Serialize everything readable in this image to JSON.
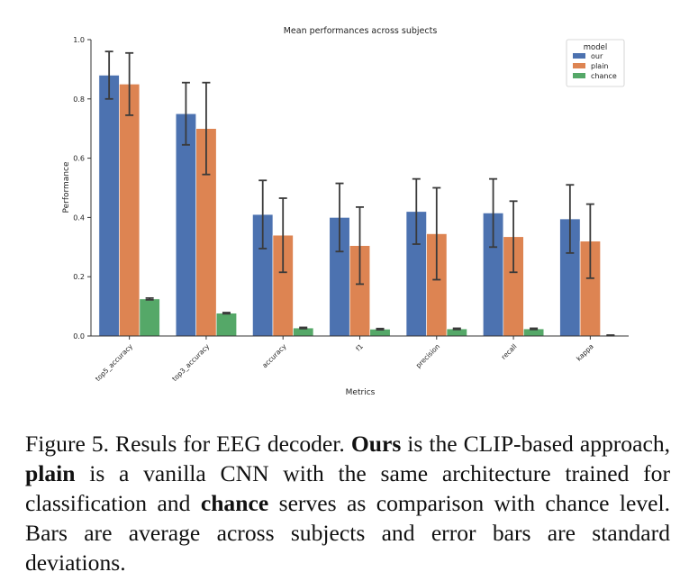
{
  "chart_data": {
    "type": "bar",
    "title": "Mean performances across subjects",
    "xlabel": "Metrics",
    "ylabel": "Performance",
    "ylim": [
      0,
      1.0
    ],
    "yticks": [
      "0.0",
      "0.2",
      "0.4",
      "0.6",
      "0.8",
      "1.0"
    ],
    "categories": [
      "top5_accuracy",
      "top3_accuracy",
      "accuracy",
      "f1",
      "precision",
      "recall",
      "kappa"
    ],
    "legend": {
      "title": "model",
      "placement": "top-right"
    },
    "series": [
      {
        "name": "our",
        "color": "#4c72b0",
        "values": [
          0.88,
          0.75,
          0.41,
          0.4,
          0.42,
          0.415,
          0.395
        ],
        "errors": [
          0.08,
          0.105,
          0.115,
          0.115,
          0.11,
          0.115,
          0.115
        ]
      },
      {
        "name": "plain",
        "color": "#dd8452",
        "values": [
          0.85,
          0.7,
          0.34,
          0.305,
          0.345,
          0.335,
          0.32
        ],
        "errors": [
          0.105,
          0.155,
          0.125,
          0.13,
          0.155,
          0.12,
          0.125
        ]
      },
      {
        "name": "chance",
        "color": "#55a868",
        "values": [
          0.125,
          0.077,
          0.027,
          0.023,
          0.024,
          0.024,
          0.002
        ],
        "errors": [
          0.003,
          0.002,
          0.002,
          0.002,
          0.002,
          0.002,
          0.001
        ]
      }
    ]
  },
  "caption": {
    "label": "Figure 5.",
    "text1": "Resuls for EEG decoder.",
    "b1": "Ours",
    "text2": "is the CLIP-based approach,",
    "b2": "plain",
    "text3": "is a vanilla CNN with the same architecture trained for classification and",
    "b3": "chance",
    "text4": "serves as comparison with chance level. Bars are average across subjects and error bars are standard deviations."
  }
}
